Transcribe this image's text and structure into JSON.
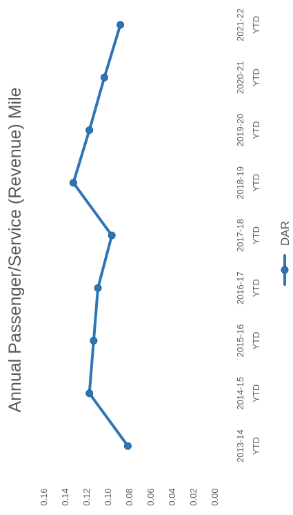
{
  "chart_data": {
    "type": "line",
    "title": "Annual Passenger/Service (Revenue) Mile",
    "categories": [
      [
        "2013-14",
        "YTD"
      ],
      [
        "2014-15",
        "YTD"
      ],
      [
        "2015-16",
        "YTD"
      ],
      [
        "2016-17",
        "YTD"
      ],
      [
        "2017-18",
        "YTD"
      ],
      [
        "2018-19",
        "YTD"
      ],
      [
        "2019-20",
        "YTD"
      ],
      [
        "2020-21",
        "YTD"
      ],
      [
        "2021-22",
        "YTD"
      ]
    ],
    "series": [
      {
        "name": "DAR",
        "color": "#2e75b6",
        "values": [
          0.081,
          0.117,
          0.113,
          0.109,
          0.096,
          0.132,
          0.117,
          0.103,
          0.088
        ]
      }
    ],
    "ylim": [
      0,
      0.16
    ],
    "yticks": [
      "0.00",
      "0.02",
      "0.04",
      "0.06",
      "0.08",
      "0.10",
      "0.12",
      "0.14",
      "0.16"
    ],
    "grid": false,
    "legend": "bottom",
    "orientation": "rotated 90° counter-clockwise"
  }
}
